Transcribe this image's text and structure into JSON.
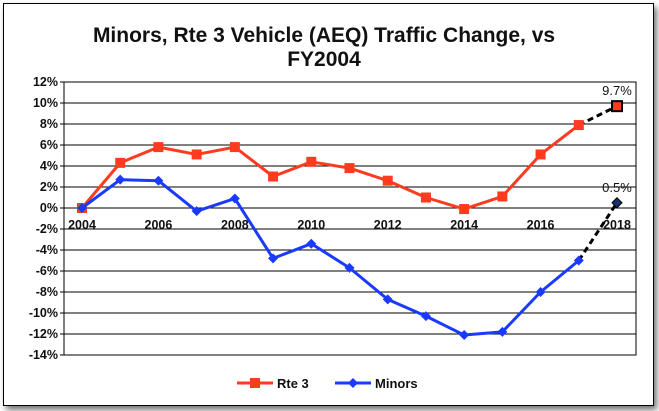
{
  "chart_data": {
    "type": "line",
    "title_line1": "Minors, Rte 3 Vehicle (AEQ) Traffic Change, vs",
    "title_line2": "FY2004",
    "ylabel_format": "percent",
    "ylim": [
      -14,
      12
    ],
    "yticks": [
      12,
      10,
      8,
      6,
      4,
      2,
      0,
      -2,
      -4,
      -6,
      -8,
      -10,
      -12,
      -14
    ],
    "ytick_labels": [
      "12%",
      "10%",
      "8%",
      "6%",
      "4%",
      "2%",
      "0%",
      "-2%",
      "-4%",
      "-6%",
      "-8%",
      "-10%",
      "-12%",
      "-14%"
    ],
    "xlim": [
      2004,
      2018
    ],
    "xticks": [
      2004,
      2006,
      2008,
      2010,
      2012,
      2014,
      2016,
      2018
    ],
    "xtick_labels": [
      "2004",
      "2006",
      "2008",
      "2010",
      "2012",
      "2014",
      "2016",
      "2018"
    ],
    "x": [
      2004,
      2005,
      2006,
      2007,
      2008,
      2009,
      2010,
      2011,
      2012,
      2013,
      2014,
      2015,
      2016,
      2017
    ],
    "series": [
      {
        "name": "Rte 3",
        "color": "#ff3b1f",
        "marker": "square",
        "values": [
          0,
          4.3,
          5.8,
          5.1,
          5.8,
          3.0,
          4.4,
          3.8,
          2.6,
          1.0,
          -0.1,
          1.1,
          5.1,
          7.9
        ],
        "projection": {
          "from_x": 2017,
          "from_y": 7.9,
          "to_x": 2018,
          "to_y": 9.7
        },
        "projection_label": "9.7%"
      },
      {
        "name": "Minors",
        "color": "#1a3bff",
        "marker": "diamond",
        "values": [
          0,
          2.7,
          2.6,
          -0.3,
          0.9,
          -4.8,
          -3.4,
          -5.7,
          -8.7,
          -10.3,
          -12.1,
          -11.8,
          -8.0,
          -5.0
        ],
        "projection": {
          "from_x": 2017,
          "from_y": -5.0,
          "to_x": 2018,
          "to_y": 0.5
        },
        "projection_label": "0.5%"
      }
    ],
    "legend": {
      "position": "bottom-center",
      "entries": [
        "Rte 3",
        "Minors"
      ]
    },
    "grid": true
  }
}
